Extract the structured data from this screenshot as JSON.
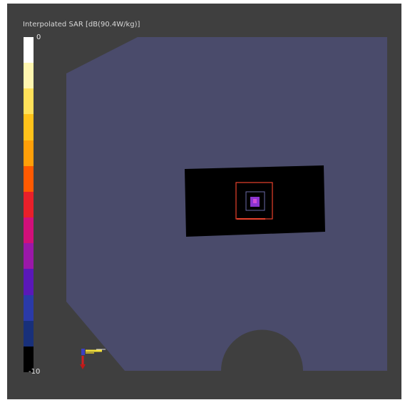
{
  "legend": {
    "title": "Interpolated SAR [dB(90.4W/kg)]",
    "max_label": "0",
    "min_label": "-10",
    "colors": [
      "#ffffff",
      "#fff6b0",
      "#ffe15a",
      "#ffc21a",
      "#ff9f08",
      "#ff5a00",
      "#e8202a",
      "#d0107a",
      "#9a18a8",
      "#5a18b8",
      "#2a3aa8",
      "#18307a",
      "#000000"
    ]
  },
  "colors": {
    "background": "#3f3f3f",
    "phantom": "#4a4b6b",
    "scan_area": "#000000",
    "zoom_outer": "#e8412c",
    "zoom_inner": "#6a6aa8",
    "hotspot": "#8a34d0"
  },
  "axis_triad": {
    "icon": "coordinate-axes-icon"
  }
}
